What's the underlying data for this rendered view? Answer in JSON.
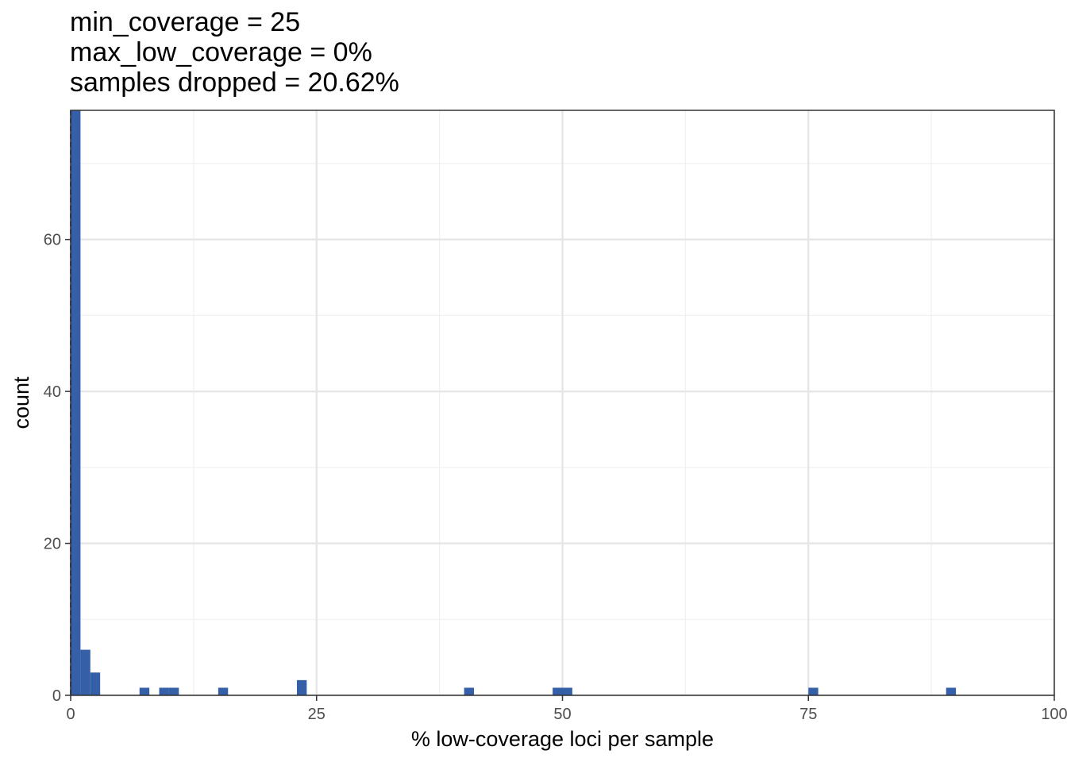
{
  "title_lines": [
    "min_coverage = 25",
    "max_low_coverage = 0%",
    "samples dropped = 20.62%"
  ],
  "chart_data": {
    "type": "bar",
    "subtype": "histogram",
    "xlabel": "% low-coverage loci per sample",
    "ylabel": "count",
    "xlim": [
      0,
      100
    ],
    "ylim": [
      0,
      77
    ],
    "x_ticks": [
      0,
      25,
      50,
      75,
      100
    ],
    "x_tick_labels": [
      "0",
      "25",
      "50",
      "75",
      "100"
    ],
    "y_ticks": [
      0,
      20,
      40,
      60
    ],
    "y_tick_labels": [
      "0",
      "20",
      "40",
      "60"
    ],
    "bin_width": 1,
    "bins": [
      {
        "x": 0,
        "count": 77
      },
      {
        "x": 1,
        "count": 6
      },
      {
        "x": 2,
        "count": 3
      },
      {
        "x": 7,
        "count": 1
      },
      {
        "x": 9,
        "count": 1
      },
      {
        "x": 10,
        "count": 1
      },
      {
        "x": 15,
        "count": 1
      },
      {
        "x": 23,
        "count": 2
      },
      {
        "x": 40,
        "count": 1
      },
      {
        "x": 49,
        "count": 1
      },
      {
        "x": 50,
        "count": 1
      },
      {
        "x": 75,
        "count": 1
      },
      {
        "x": 89,
        "count": 1
      }
    ],
    "vline": {
      "x": 0,
      "style": "dashed"
    },
    "grid": true,
    "legend": "none",
    "bar_color": "#3560a8",
    "theme": "bw"
  }
}
